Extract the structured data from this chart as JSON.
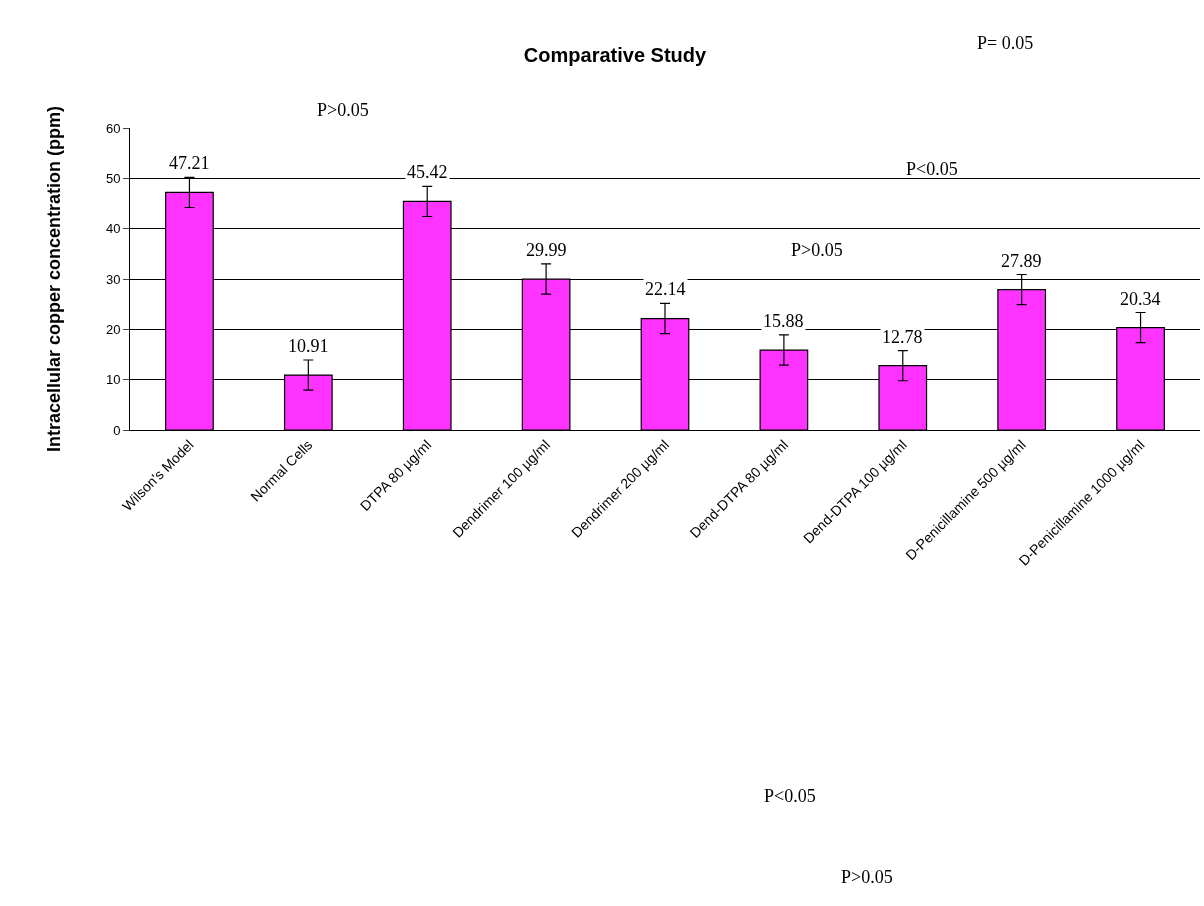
{
  "chart_data": {
    "type": "bar",
    "title": "Comparative Study",
    "ylabel": "Intracellular copper concentration (ppm)",
    "categories": [
      "Wilson's Model",
      "Normal Cells",
      "DTPA 80 µg/ml",
      "Dendrimer 100 µg/ml",
      "Dendrimer 200 µg/ml",
      "Dend-DTPA 80 µg/ml",
      "Dend-DTPA 100 µg/ml",
      "D-Penicillamine 500 µg/ml",
      "D-Penicillamine 1000 µg/ml"
    ],
    "values": [
      47.21,
      10.91,
      45.42,
      29.99,
      22.14,
      15.88,
      12.78,
      27.89,
      20.34
    ],
    "errors": [
      3,
      3,
      3,
      3,
      3,
      3,
      3,
      3,
      3
    ],
    "color": "#ff33ff",
    "data_labels": true,
    "grid": "y",
    "ylim": [
      0,
      60
    ],
    "yticks": [
      0,
      10,
      20,
      30,
      40,
      50,
      60
    ],
    "annotations": [
      "P>0.05",
      "P= 0.05",
      "P<0.05",
      "P>0.05",
      "P<0.05",
      "P>0.05"
    ]
  }
}
